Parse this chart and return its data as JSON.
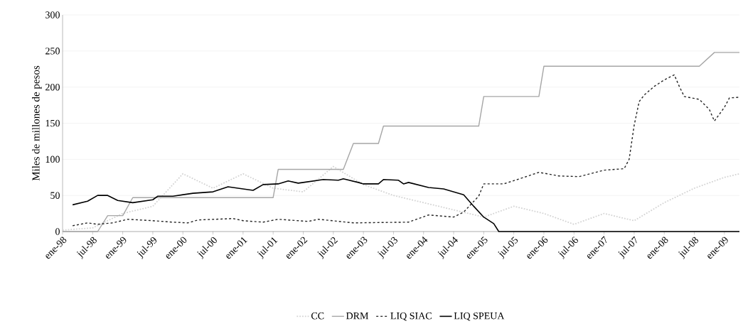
{
  "chart_data": {
    "type": "line",
    "ylabel": "Miles de millones de pesos",
    "xlim": [
      "1998-01",
      "2009-04"
    ],
    "ylim": [
      0,
      300
    ],
    "yticks": [
      0,
      50,
      100,
      150,
      200,
      250,
      300
    ],
    "xticks": [
      {
        "value": "1998-01",
        "label": "ene-98"
      },
      {
        "value": "1998-07",
        "label": "jul-98"
      },
      {
        "value": "1999-01",
        "label": "ene-99"
      },
      {
        "value": "1999-07",
        "label": "jul-99"
      },
      {
        "value": "2000-01",
        "label": "ene-00"
      },
      {
        "value": "2000-07",
        "label": "jul-00"
      },
      {
        "value": "2001-01",
        "label": "ene-01"
      },
      {
        "value": "2001-07",
        "label": "jul-01"
      },
      {
        "value": "2002-01",
        "label": "ene-02"
      },
      {
        "value": "2002-07",
        "label": "jul-02"
      },
      {
        "value": "2003-01",
        "label": "ene-03"
      },
      {
        "value": "2003-07",
        "label": "jul-03"
      },
      {
        "value": "2004-01",
        "label": "ene-04"
      },
      {
        "value": "2004-07",
        "label": "jul-04"
      },
      {
        "value": "2005-01",
        "label": "ene-05"
      },
      {
        "value": "2005-07",
        "label": "jul-05"
      },
      {
        "value": "2006-01",
        "label": "ene-06"
      },
      {
        "value": "2006-07",
        "label": "jul-06"
      },
      {
        "value": "2007-01",
        "label": "ene-07"
      },
      {
        "value": "2007-07",
        "label": "jul-07"
      },
      {
        "value": "2008-01",
        "label": "ene-08"
      },
      {
        "value": "2008-07",
        "label": "jul-08"
      },
      {
        "value": "2009-01",
        "label": "ene-09"
      }
    ],
    "grid": "y",
    "legend": "bottom",
    "marker": "none",
    "series": [
      {
        "name": "CC",
        "color": "#d4d4d4",
        "line_style": "dotted",
        "x": [
          "1998-01",
          "1998-07",
          "1999-01",
          "1999-07",
          "2000-01",
          "2000-07",
          "2001-01",
          "2001-07",
          "2002-01",
          "2002-07",
          "2003-01",
          "2003-07",
          "2004-01",
          "2004-07",
          "2005-01",
          "2005-07",
          "2006-01",
          "2006-07",
          "2007-01",
          "2007-07",
          "2008-01",
          "2008-07",
          "2009-01",
          "2009-04"
        ],
        "values": [
          2,
          5,
          25,
          35,
          80,
          60,
          80,
          60,
          55,
          90,
          65,
          50,
          40,
          30,
          20,
          35,
          25,
          10,
          25,
          15,
          40,
          60,
          75,
          80
        ]
      },
      {
        "name": "DRM",
        "color": "#a6a6a6",
        "line_style": "solid",
        "x": [
          "1998-01",
          "1998-08",
          "1998-10",
          "1999-01",
          "1999-03",
          "2001-07",
          "2001-08",
          "2002-09",
          "2002-11",
          "2003-04",
          "2003-05",
          "2004-12",
          "2005-01",
          "2005-12",
          "2006-01",
          "2008-08",
          "2008-11",
          "2009-04"
        ],
        "values": [
          0,
          0,
          22,
          22,
          47,
          47,
          86,
          86,
          122,
          122,
          146,
          146,
          187,
          187,
          229,
          229,
          248,
          248
        ]
      },
      {
        "name": "LIQ  SIAC",
        "color": "#262626",
        "line_style": "dashed",
        "x": [
          "1998-03",
          "1998-06",
          "1998-08",
          "1998-11",
          "1999-02",
          "1999-07",
          "1999-11",
          "2000-02",
          "2000-04",
          "2000-11",
          "2001-01",
          "2001-05",
          "2001-08",
          "2002-02",
          "2002-04",
          "2002-11",
          "2003-10",
          "2004-02",
          "2004-07",
          "2004-09",
          "2004-12",
          "2005-01",
          "2005-05",
          "2005-09",
          "2005-12",
          "2006-04",
          "2006-08",
          "2007-01",
          "2007-05",
          "2007-06",
          "2007-07",
          "2007-08",
          "2007-09",
          "2007-11",
          "2008-01",
          "2008-03",
          "2008-04",
          "2008-05",
          "2008-08",
          "2008-10",
          "2008-11",
          "2009-01",
          "2009-02",
          "2009-04"
        ],
        "values": [
          8,
          12,
          10,
          12,
          17,
          15,
          13,
          12,
          16,
          18,
          15,
          13,
          17,
          14,
          17,
          12,
          13,
          23,
          20,
          27,
          49,
          66,
          66,
          75,
          82,
          77,
          76,
          85,
          87,
          100,
          147,
          180,
          189,
          201,
          210,
          217,
          201,
          187,
          183,
          169,
          153,
          172,
          185,
          186
        ]
      },
      {
        "name": "LIQ  SPEUA",
        "color": "#000000",
        "line_style": "solid",
        "x": [
          "1998-03",
          "1998-06",
          "1998-08",
          "1998-10",
          "1998-12",
          "1999-03",
          "1999-05",
          "1999-07",
          "1999-08",
          "1999-11",
          "2000-03",
          "2000-07",
          "2000-10",
          "2001-01",
          "2001-03",
          "2001-05",
          "2001-08",
          "2001-10",
          "2001-12",
          "2002-01",
          "2002-05",
          "2002-08",
          "2002-09",
          "2002-12",
          "2003-01",
          "2003-04",
          "2003-05",
          "2003-08",
          "2003-09",
          "2003-10",
          "2004-02",
          "2004-05",
          "2004-09",
          "2004-11",
          "2005-01",
          "2005-03",
          "2005-04",
          "2009-04"
        ],
        "values": [
          37,
          42,
          50,
          50,
          43,
          40,
          42,
          44,
          49,
          49,
          53,
          55,
          62,
          59,
          57,
          65,
          66,
          70,
          67,
          68,
          72,
          71,
          73,
          68,
          66,
          66,
          72,
          71,
          66,
          68,
          61,
          59,
          51,
          35,
          20,
          11,
          0,
          0
        ]
      }
    ]
  }
}
